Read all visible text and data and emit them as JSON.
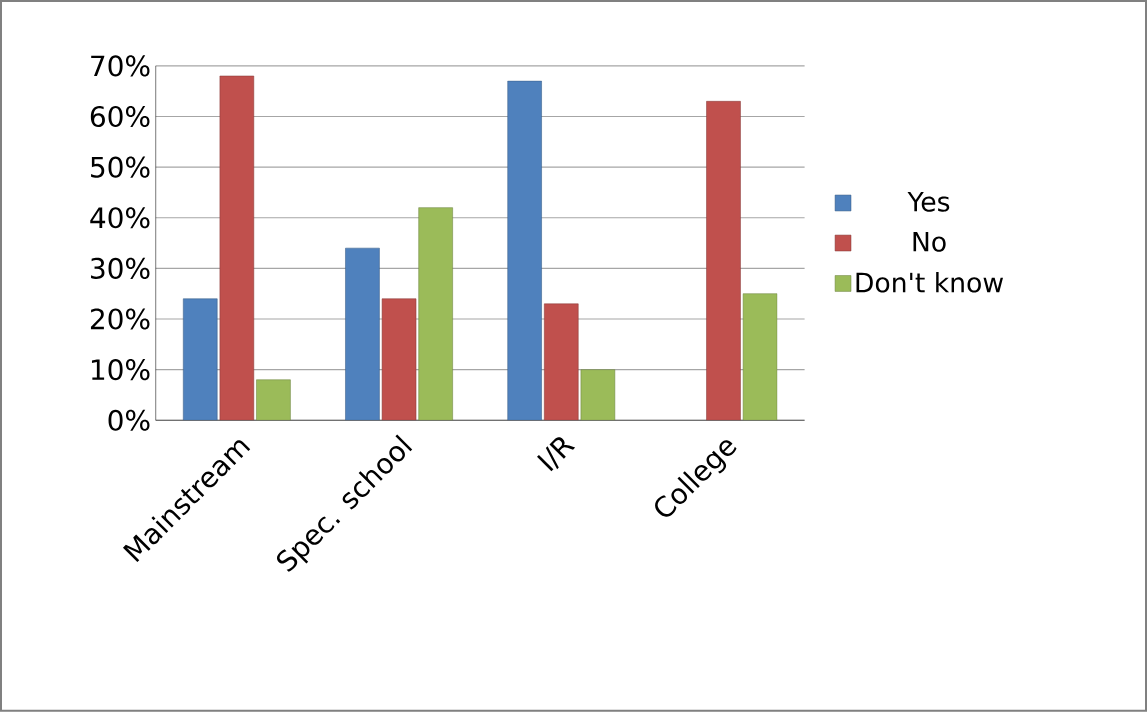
{
  "chart_data": {
    "type": "bar",
    "categories": [
      "Mainstream",
      "Spec. school",
      "I/R",
      "College"
    ],
    "series": [
      {
        "name": "Yes",
        "color": "#4f81bd",
        "values": [
          24,
          34,
          67,
          null
        ]
      },
      {
        "name": "No",
        "color": "#c0504d",
        "values": [
          68,
          24,
          23,
          63
        ]
      },
      {
        "name": "Don't know",
        "color": "#9bbb59",
        "values": [
          8,
          42,
          10,
          25
        ]
      }
    ],
    "ylim": [
      0,
      70
    ],
    "yticks": [
      {
        "value": 0,
        "label": "0%"
      },
      {
        "value": 10,
        "label": "10%"
      },
      {
        "value": 20,
        "label": "20%"
      },
      {
        "value": 30,
        "label": "30%"
      },
      {
        "value": 40,
        "label": "40%"
      },
      {
        "value": 50,
        "label": "50%"
      },
      {
        "value": 60,
        "label": "60%"
      },
      {
        "value": 70,
        "label": "70%"
      }
    ],
    "grid": "y",
    "legend": "right"
  }
}
